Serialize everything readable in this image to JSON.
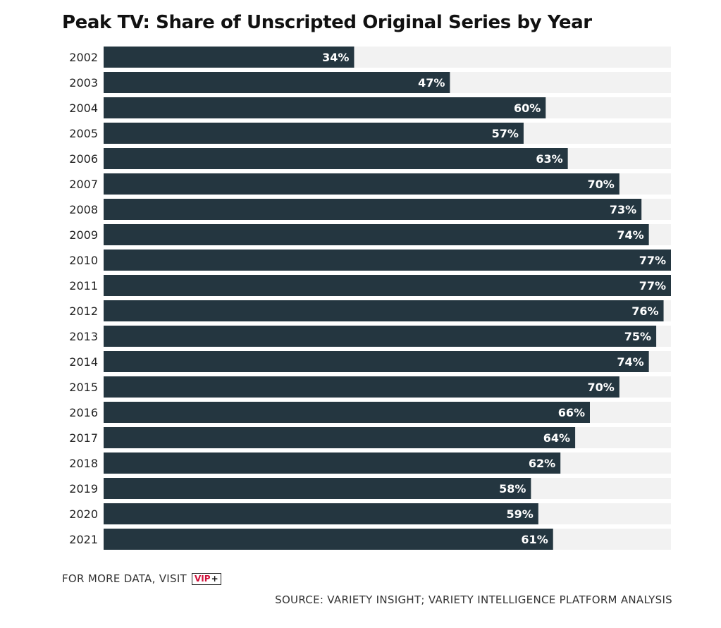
{
  "chart_data": {
    "type": "bar",
    "orientation": "horizontal",
    "title": "Peak TV: Share of Unscripted Original Series by Year",
    "categories": [
      "2002",
      "2003",
      "2004",
      "2005",
      "2006",
      "2007",
      "2008",
      "2009",
      "2010",
      "2011",
      "2012",
      "2013",
      "2014",
      "2015",
      "2016",
      "2017",
      "2018",
      "2019",
      "2020",
      "2021"
    ],
    "values": [
      34,
      47,
      60,
      57,
      63,
      70,
      73,
      74,
      77,
      77,
      76,
      75,
      74,
      70,
      66,
      64,
      62,
      58,
      59,
      61
    ],
    "value_suffix": "%",
    "xlim": [
      0,
      77
    ],
    "grid": false,
    "legend": "none",
    "colors": {
      "bar": "#243640",
      "track": "#f2f2f2",
      "label": "#ffffff"
    }
  },
  "footer": {
    "visit_text": "FOR MORE DATA, VISIT",
    "badge_vip": "VIP",
    "badge_plus": "+",
    "source": "SOURCE: VARIETY INSIGHT; VARIETY INTELLIGENCE PLATFORM ANALYSIS"
  },
  "icons": {
    "badge": "vip-plus-logo"
  }
}
